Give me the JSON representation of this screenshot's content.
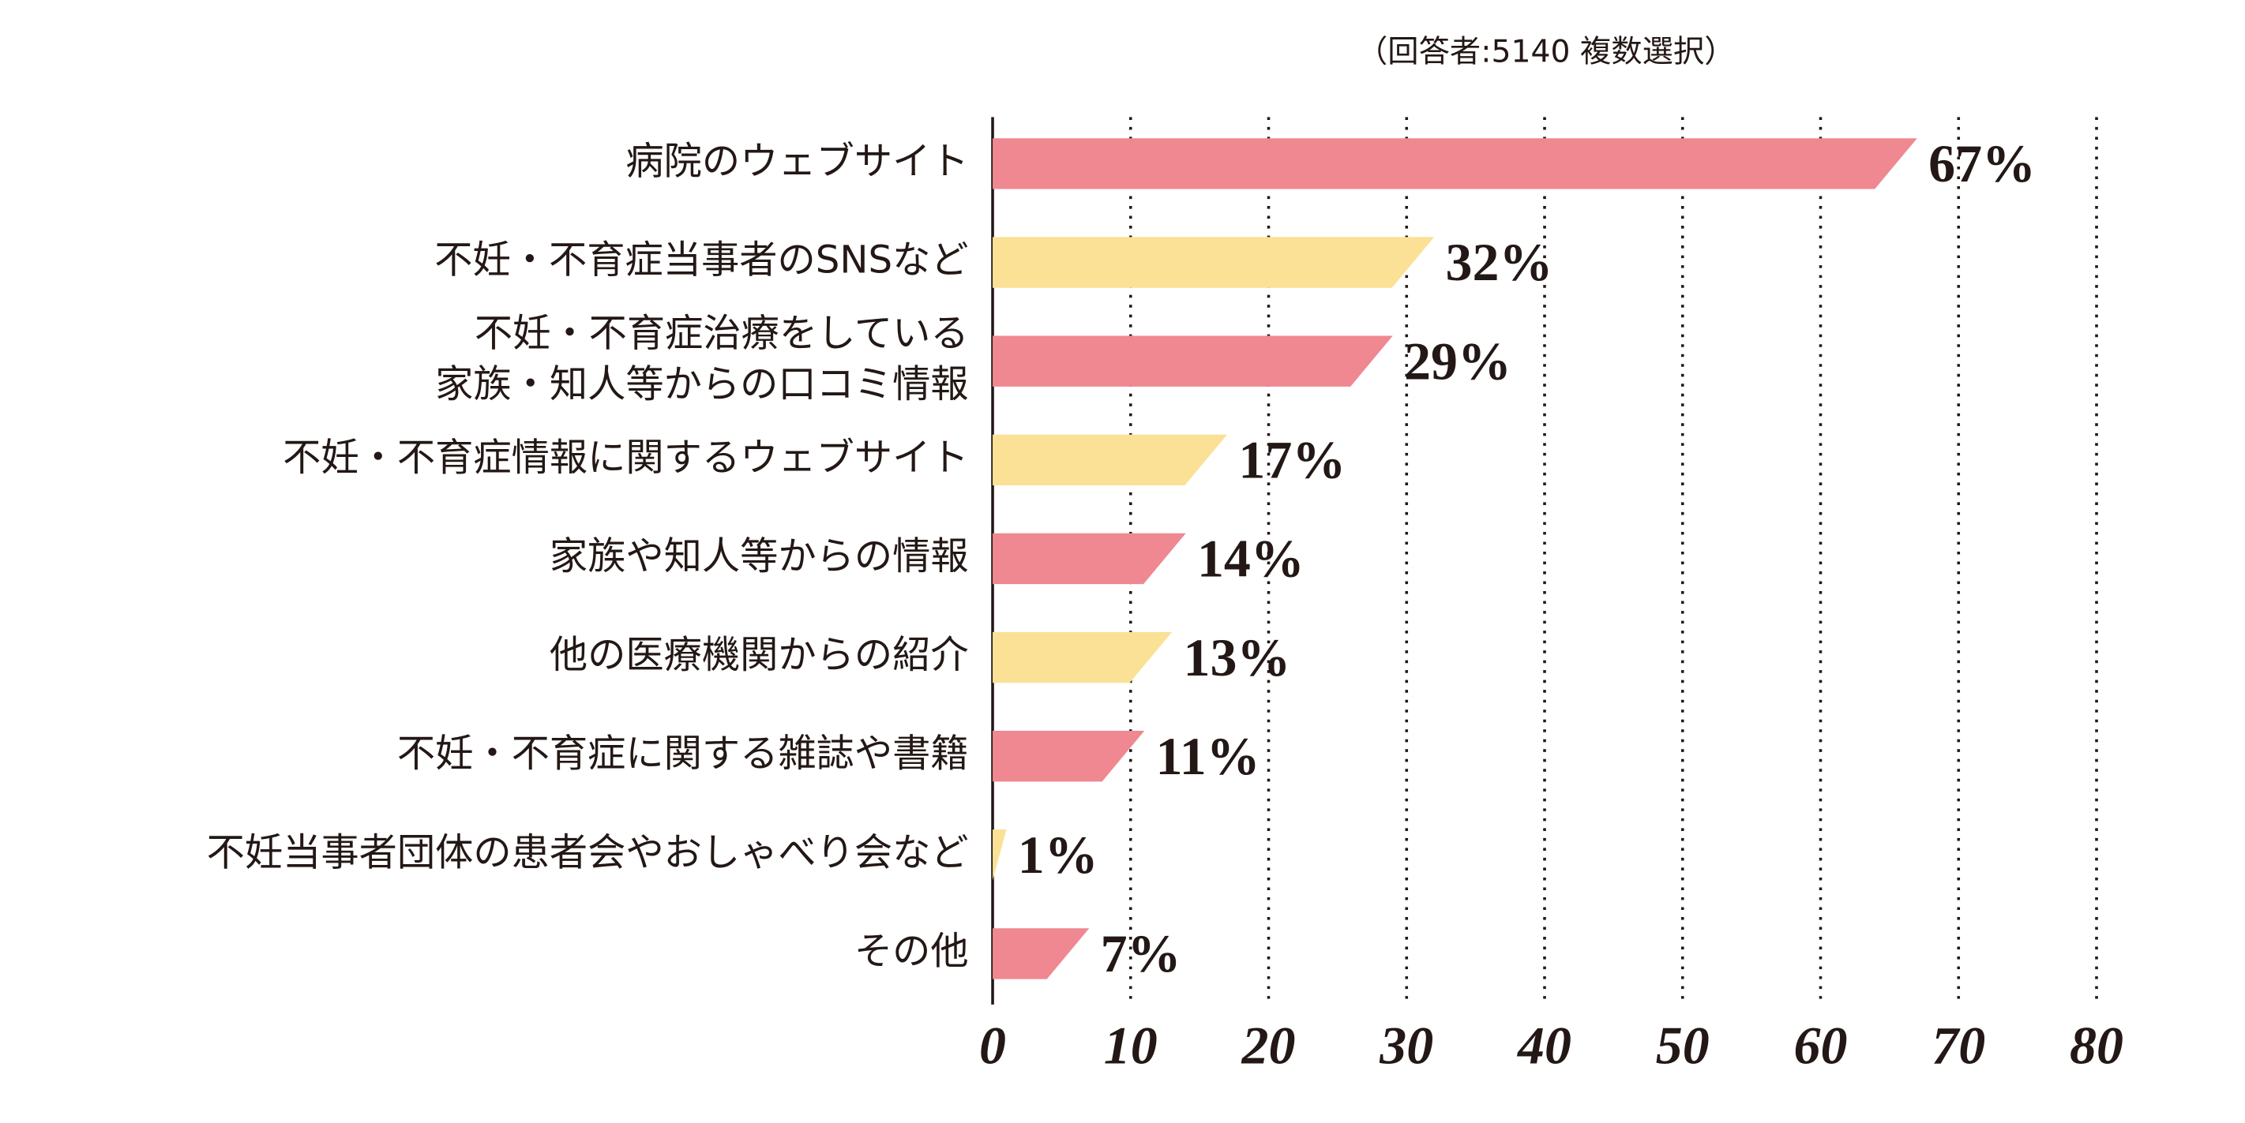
{
  "chart_data": {
    "type": "bar",
    "orientation": "horizontal",
    "subtitle": "（回答者:5140 複数選択）",
    "categories": [
      "病院のウェブサイト",
      "不妊・不育症当事者のSNSなど",
      "不妊・不育症治療をしている\n家族・知人等からの口コミ情報",
      "不妊・不育症情報に関するウェブサイト",
      "家族や知人等からの情報",
      "他の医療機関からの紹介",
      "不妊・不育症に関する雑誌や書籍",
      "不妊当事者団体の患者会やおしゃべり会など",
      "その他"
    ],
    "values": [
      67,
      32,
      29,
      17,
      14,
      13,
      11,
      1,
      7
    ],
    "value_labels": [
      "67%",
      "32%",
      "29%",
      "17%",
      "14%",
      "13%",
      "11%",
      "1%",
      "7%"
    ],
    "colors": [
      "#ef8891",
      "#fbe196",
      "#ef8891",
      "#fbe196",
      "#ef8891",
      "#fbe196",
      "#ef8891",
      "#fbe196",
      "#ef8891"
    ],
    "xlim": [
      0,
      80
    ],
    "xticks": [
      0,
      10,
      20,
      30,
      40,
      50,
      60,
      70,
      80
    ],
    "grid": true
  }
}
